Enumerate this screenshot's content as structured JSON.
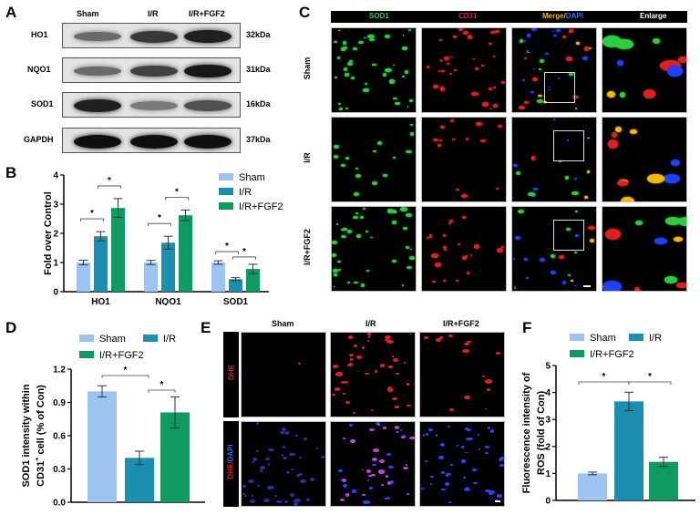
{
  "panels": {
    "A": {
      "label": "A",
      "groups": [
        "Sham",
        "I/R",
        "I/R+FGF2"
      ],
      "rows": [
        {
          "protein": "HO1",
          "size": "32kDa",
          "intensities": [
            0.45,
            0.75,
            0.9
          ]
        },
        {
          "protein": "NQO1",
          "size": "31kDa",
          "intensities": [
            0.45,
            0.7,
            0.95
          ]
        },
        {
          "protein": "SOD1",
          "size": "16kDa",
          "intensities": [
            0.9,
            0.35,
            0.6
          ]
        },
        {
          "protein": "GAPDH",
          "size": "37kDa",
          "intensities": [
            1.0,
            1.0,
            1.0
          ]
        }
      ]
    },
    "B": {
      "label": "B"
    },
    "C": {
      "label": "C",
      "columns": [
        "SOD1",
        "CD31",
        "Merge",
        "/",
        "DAPI",
        "Enlarge"
      ],
      "column_colors": {
        "SOD1": "#2ecc40",
        "CD31": "#e02020",
        "Merge": "#f5b800",
        "DAPI": "#2a6cff",
        "Enlarge": "#ffffff"
      },
      "rows": [
        "Sham",
        "I/R",
        "I/R+FGF2"
      ]
    },
    "D": {
      "label": "D"
    },
    "E": {
      "label": "E",
      "columns": [
        "Sham",
        "I/R",
        "I/R+FGF2"
      ],
      "row_labels": [
        {
          "a": "DHE"
        },
        {
          "a": "DHE",
          "sep": "/",
          "b": "DAPI"
        }
      ]
    },
    "F": {
      "label": "F"
    }
  },
  "chart_data": [
    {
      "id": "B",
      "type": "bar",
      "title": "",
      "xlabel": "",
      "ylabel": "Fold over Control",
      "categories": [
        "HO1",
        "NQO1",
        "SOD1"
      ],
      "series": [
        {
          "name": "Sham",
          "color": "#9dc3f0",
          "values": [
            1.0,
            1.0,
            1.0
          ],
          "errors": [
            0.08,
            0.07,
            0.06
          ]
        },
        {
          "name": "I/R",
          "color": "#1a8fb0",
          "values": [
            1.9,
            1.68,
            0.43
          ],
          "errors": [
            0.16,
            0.22,
            0.05
          ]
        },
        {
          "name": "I/R+FGF2",
          "color": "#0f9a64",
          "values": [
            2.87,
            2.62,
            0.78
          ],
          "errors": [
            0.32,
            0.18,
            0.16
          ]
        }
      ],
      "ylim": [
        0,
        4
      ],
      "yticks": [
        "0",
        "1",
        "2",
        "3",
        "4"
      ],
      "significance": "*",
      "legend_position": "top-right",
      "grid": false
    },
    {
      "id": "D",
      "type": "bar",
      "title": "",
      "xlabel": "",
      "ylabel_line1": "SOD1 intensity within",
      "ylabel_line2_pre": "CD31",
      "ylabel_line2_sup": "+",
      "ylabel_line2_post": " cell (% of Con)",
      "categories": [
        "Sham",
        "I/R",
        "I/R+FGF2"
      ],
      "values": [
        1.0,
        0.4,
        0.81
      ],
      "errors": [
        0.05,
        0.06,
        0.14
      ],
      "colors": [
        "#9dc3f0",
        "#1a8fb0",
        "#0f9a64"
      ],
      "ylim": [
        0,
        1.2
      ],
      "yticks": [
        "0.0",
        "0.3",
        "0.6",
        "0.9",
        "1.2"
      ],
      "significance": "*",
      "legend_position": "top",
      "grid": false
    },
    {
      "id": "F",
      "type": "bar",
      "title": "",
      "xlabel": "",
      "ylabel_line1": "Fluorescence intensity of",
      "ylabel_line2": "ROS (fold of Con)",
      "categories": [
        "Sham",
        "I/R",
        "I/R+FGF2"
      ],
      "values": [
        1.0,
        3.67,
        1.43
      ],
      "errors": [
        0.05,
        0.34,
        0.17
      ],
      "colors": [
        "#9dc3f0",
        "#1a8fb0",
        "#0f9a64"
      ],
      "ylim": [
        0,
        5
      ],
      "yticks": [
        "0",
        "1",
        "2",
        "3",
        "4",
        "5"
      ],
      "significance": "*",
      "legend_position": "top",
      "grid": false
    }
  ]
}
